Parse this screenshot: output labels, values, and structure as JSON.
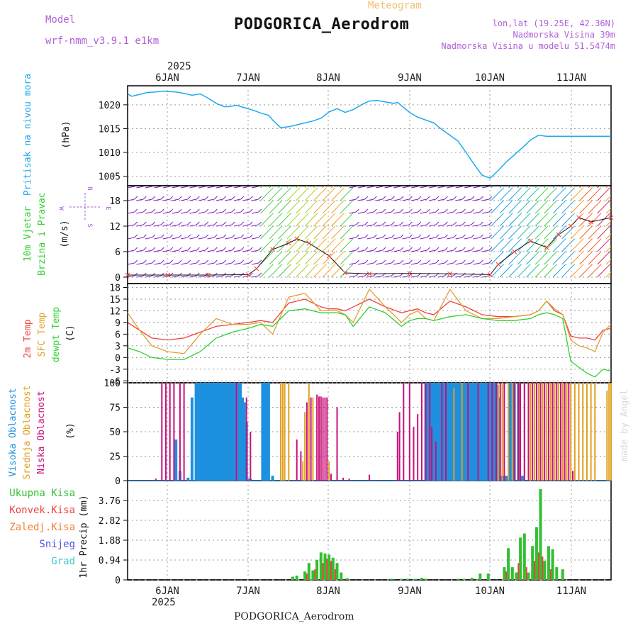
{
  "header": {
    "meteogram_label": "Meteogram",
    "model_label": "Model",
    "model_name": "wrf-nmm_v3.9.1 e1km",
    "station_title": "PODGORICA_Aerodrom",
    "coords": "lon,lat (19.25E, 42.36N)",
    "elevation": "Nadmorska Visina 39m",
    "model_elevation": "Nadmorska Visina u modelu 51.5474m",
    "footer_station": "PODGORICA_Aerodrom",
    "watermark": "made by Angel"
  },
  "colors": {
    "pressure": "#1ea8f0",
    "temp2m": "#f04040",
    "sfc": "#e0a030",
    "dewpt": "#30d030",
    "high_cloud": "#1e90e0",
    "mid_cloud": "#e0a020",
    "low_cloud": "#c8107a",
    "total_precip": "#30c030",
    "conv_precip": "#f04040",
    "frozen_precip": "#f08030",
    "snow": "#5050e0",
    "graupel": "#40c8c8",
    "wind_legend": "#b060d8"
  },
  "time_axis": {
    "year": "2025",
    "days": [
      "6JAN",
      "7JAN",
      "8JAN",
      "9JAN",
      "10JAN",
      "11JAN"
    ]
  },
  "chart_data": [
    {
      "type": "line",
      "panel": "pressure",
      "ylabel_rotated": "Pritisak na nivou mora",
      "unit": "(hPa)",
      "yticks": [
        "1005",
        "1010",
        "1015",
        "1020"
      ],
      "ylim": [
        1003,
        1024
      ],
      "x_days": [
        0.0,
        0.1,
        0.3,
        0.5,
        0.7,
        0.9,
        1.0,
        1.2,
        1.4,
        1.6,
        1.8,
        2.0,
        2.2,
        2.4,
        2.5,
        2.7,
        2.9,
        3.1,
        3.3,
        3.5,
        3.6,
        3.8,
        4.0,
        4.2,
        4.4,
        4.6,
        4.8,
        5.0,
        5.2,
        5.4,
        5.6,
        5.8,
        6.0,
        6.2,
        6.4,
        6.6,
        6.7,
        6.8,
        7.0,
        7.2,
        7.4,
        7.6,
        7.8,
        8.0,
        8.2,
        8.4,
        8.6,
        8.8,
        9.0,
        9.2,
        9.4,
        9.6,
        9.8,
        10.0,
        10.2,
        10.4,
        10.6,
        10.8,
        11.0,
        11.2,
        11.4,
        11.6,
        11.8,
        12.0
      ],
      "values": [
        1022.3,
        1021.8,
        1022.2,
        1022.6,
        1022.7,
        1022.9,
        1022.8,
        1022.7,
        1022.4,
        1022.0,
        1022.3,
        1021.4,
        1020.3,
        1019.6,
        1019.6,
        1019.9,
        1019.4,
        1018.9,
        1018.3,
        1017.8,
        1016.8,
        1015.2,
        1015.4,
        1015.8,
        1016.2,
        1016.6,
        1017.2,
        1018.5,
        1019.2,
        1018.4,
        1019.0,
        1020.0,
        1020.8,
        1020.9,
        1020.6,
        1020.3,
        1020.5,
        1019.8,
        1018.4,
        1017.4,
        1016.8,
        1016.2,
        1014.8,
        1013.6,
        1012.4,
        1010.0,
        1007.5,
        1005.2,
        1004.6,
        1006.2,
        1008.0,
        1009.5,
        1011.0,
        1012.6,
        1013.6,
        1013.4,
        1013.4,
        1013.4,
        1013.4,
        1013.4,
        1013.4,
        1013.4,
        1013.4,
        1013.4
      ]
    },
    {
      "type": "line",
      "panel": "wind",
      "ylabel_rotated_1": "10m Vjetar",
      "ylabel_rotated_2": "Brzina i Pravac",
      "unit": "(m/s)",
      "yticks": [
        "0",
        "6",
        "12",
        "18"
      ],
      "ylim": [
        -1.5,
        21.5
      ],
      "legend_compass": {
        "north": "N",
        "south": "S",
        "east": "E",
        "west": "W"
      },
      "x_days": [
        0.0,
        1.0,
        2.0,
        3.0,
        3.2,
        3.6,
        4.0,
        4.2,
        4.5,
        5.0,
        5.4,
        6.0,
        7.0,
        8.0,
        9.0,
        9.2,
        9.6,
        10.0,
        10.4,
        10.7,
        11.0,
        11.2,
        11.5,
        12.0
      ],
      "speed_values": [
        0.5,
        0.5,
        0.5,
        0.6,
        2.0,
        6.5,
        8.0,
        9.0,
        8.0,
        5.0,
        1.0,
        0.8,
        0.9,
        0.8,
        0.6,
        3.0,
        6.0,
        8.5,
        7.0,
        10.0,
        12.0,
        14.0,
        13.0,
        14.0
      ]
    },
    {
      "type": "line",
      "panel": "temperature",
      "ylabel_rotated_1": "2m Temp",
      "ylabel_rotated_2": "SFC Temp",
      "ylabel_rotated_3": "dewpt Temp",
      "unit": "(C)",
      "yticks": [
        "-6",
        "-3",
        "0",
        "3",
        "6",
        "9",
        "12",
        "15",
        "18"
      ],
      "ylim": [
        -6.5,
        19
      ],
      "x_days": [
        0.0,
        0.3,
        0.6,
        1.0,
        1.4,
        1.8,
        2.2,
        2.6,
        3.0,
        3.3,
        3.6,
        4.0,
        4.4,
        4.8,
        5.0,
        5.2,
        5.4,
        5.6,
        6.0,
        6.4,
        6.8,
        7.0,
        7.2,
        7.4,
        7.6,
        8.0,
        8.4,
        8.8,
        9.2,
        9.6,
        10.0,
        10.2,
        10.4,
        10.6,
        10.8,
        11.0,
        11.2,
        11.4,
        11.6,
        11.8,
        12.0
      ],
      "series": [
        {
          "name": "2m Temp",
          "color_key": "temp2m",
          "values": [
            9.0,
            7.0,
            5.0,
            4.5,
            5.0,
            6.5,
            8.0,
            8.5,
            9.0,
            9.5,
            9.0,
            14.0,
            15.0,
            13.0,
            12.5,
            12.5,
            12.0,
            13.0,
            15.0,
            13.0,
            11.5,
            12.0,
            12.5,
            11.5,
            11.0,
            14.5,
            13.0,
            11.0,
            10.5,
            10.5,
            11.0,
            12.0,
            14.5,
            12.0,
            11.0,
            5.5,
            5.0,
            5.0,
            4.5,
            7.0,
            7.5
          ]
        },
        {
          "name": "SFC Temp",
          "color_key": "sfc",
          "values": [
            11.5,
            7.0,
            3.0,
            1.5,
            1.0,
            6.0,
            10.0,
            8.5,
            8.5,
            9.0,
            6.0,
            15.5,
            16.5,
            12.0,
            12.0,
            12.0,
            11.0,
            9.0,
            17.5,
            13.0,
            9.0,
            11.0,
            12.0,
            10.0,
            9.5,
            17.5,
            12.0,
            10.0,
            10.0,
            10.5,
            11.0,
            12.0,
            14.5,
            12.5,
            11.0,
            4.5,
            3.0,
            2.5,
            1.5,
            6.5,
            8.5
          ]
        },
        {
          "name": "dewpt Temp",
          "color_key": "dewpt",
          "values": [
            2.5,
            1.5,
            0.0,
            -0.5,
            -0.5,
            1.5,
            5.0,
            6.5,
            7.5,
            8.5,
            8.0,
            12.0,
            12.5,
            11.5,
            11.5,
            11.5,
            11.0,
            8.0,
            13.0,
            11.5,
            8.0,
            9.5,
            10.0,
            10.0,
            9.5,
            10.5,
            11.0,
            10.0,
            9.5,
            9.5,
            10.0,
            11.0,
            11.5,
            11.0,
            10.0,
            -1.0,
            -2.5,
            -4.0,
            -5.0,
            -3.0,
            -3.5
          ]
        }
      ]
    },
    {
      "type": "bar",
      "panel": "clouds",
      "ylabel_rotated_1": "Visoka Oblacnost",
      "ylabel_rotated_2": "Srednja Oblacnost",
      "ylabel_rotated_3": "Niska Oblacnost",
      "unit": "(%)",
      "yticks": [
        "0",
        "25",
        "50",
        "75",
        "100"
      ],
      "ylim": [
        0,
        100
      ],
      "series": [
        {
          "name": "Visoka Oblacnost",
          "color_key": "high_cloud",
          "x_days": [
            1.2,
            1.3,
            1.5,
            1.6,
            1.7,
            1.75,
            1.8,
            1.85,
            1.9,
            1.95,
            2.0,
            2.05,
            2.1,
            2.15,
            2.2,
            2.25,
            2.3,
            2.35,
            2.4,
            2.45,
            2.5,
            2.55,
            2.6,
            2.65,
            2.7,
            2.75,
            2.8,
            2.85,
            2.9,
            2.95,
            3.0,
            3.05,
            3.35,
            3.4,
            3.45,
            3.5,
            3.6,
            7.4,
            7.45,
            7.5,
            7.55,
            7.6,
            7.65,
            7.7,
            7.75,
            7.8,
            7.85,
            7.9,
            7.95,
            8.0,
            8.05,
            8.1,
            8.15,
            8.2,
            8.25,
            8.3,
            8.35,
            8.4,
            8.45,
            8.5,
            8.55,
            8.6,
            8.65,
            8.7,
            8.75,
            8.8,
            8.85,
            8.9,
            8.95,
            9.0,
            9.05,
            9.1,
            9.15,
            9.2,
            9.3,
            9.4,
            9.5,
            9.6,
            9.7,
            9.8
          ],
          "values": [
            42,
            10,
            3,
            85,
            100,
            100,
            100,
            100,
            100,
            100,
            100,
            100,
            100,
            100,
            100,
            100,
            100,
            100,
            100,
            100,
            100,
            100,
            100,
            100,
            100,
            100,
            100,
            85,
            80,
            60,
            2,
            2,
            100,
            100,
            100,
            100,
            5,
            100,
            100,
            100,
            100,
            100,
            100,
            100,
            100,
            100,
            100,
            100,
            100,
            100,
            100,
            100,
            100,
            100,
            100,
            100,
            100,
            100,
            100,
            100,
            100,
            100,
            100,
            100,
            100,
            100,
            100,
            100,
            100,
            100,
            100,
            100,
            100,
            85,
            5,
            5,
            100,
            100,
            100,
            5
          ]
        },
        {
          "name": "Srednja Oblacnost",
          "color_key": "mid_cloud",
          "x_days": [
            3.8,
            3.85,
            3.9,
            4.0,
            4.35,
            4.4,
            4.5,
            4.6,
            5.0,
            8.1,
            8.3,
            9.2,
            9.3,
            9.45,
            9.55,
            9.7,
            9.85,
            10.0,
            10.1,
            10.2,
            10.3,
            10.4,
            10.5,
            10.6,
            10.7,
            10.8,
            10.9,
            11.0,
            11.1,
            11.2,
            11.3,
            11.4,
            11.5,
            11.6,
            11.9,
            11.95,
            12.0
          ],
          "values": [
            100,
            100,
            100,
            100,
            20,
            70,
            100,
            85,
            20,
            95,
            100,
            98,
            100,
            100,
            100,
            100,
            100,
            100,
            100,
            100,
            100,
            100,
            100,
            100,
            100,
            100,
            100,
            100,
            100,
            100,
            100,
            100,
            100,
            100,
            92,
            100,
            100
          ]
        },
        {
          "name": "Niska Oblacnost",
          "color_key": "low_cloud",
          "x_days": [
            0.7,
            0.85,
            0.95,
            1.05,
            1.15,
            1.3,
            1.4,
            2.7,
            2.95,
            3.05,
            4.2,
            4.3,
            4.45,
            4.55,
            4.7,
            4.75,
            4.8,
            4.85,
            4.9,
            4.95,
            5.05,
            5.2,
            5.35,
            5.5,
            6.0,
            6.7,
            6.75,
            6.85,
            7.0,
            7.1,
            7.2,
            7.3,
            7.4,
            7.5,
            7.55,
            7.65,
            7.8,
            7.9,
            8.45,
            8.7,
            8.95,
            9.05,
            9.15,
            9.25,
            9.35,
            9.6,
            9.7,
            9.75,
            9.85,
            9.95,
            10.05,
            10.15,
            10.25,
            10.35,
            10.45,
            10.55,
            10.65,
            10.75,
            10.85,
            10.95,
            11.05
          ],
          "values": [
            2,
            100,
            100,
            100,
            100,
            100,
            100,
            100,
            85,
            50,
            42,
            30,
            80,
            85,
            88,
            86,
            86,
            85,
            85,
            85,
            7,
            75,
            3,
            2,
            6,
            50,
            70,
            100,
            100,
            55,
            68,
            100,
            100,
            100,
            55,
            40,
            100,
            100,
            100,
            100,
            100,
            100,
            100,
            100,
            100,
            100,
            100,
            100,
            100,
            100,
            100,
            100,
            100,
            100,
            100,
            100,
            100,
            100,
            100,
            100,
            10
          ]
        }
      ]
    },
    {
      "type": "bar",
      "panel": "precipitation",
      "ylabel": "1hr Precip (mm)",
      "yticks": [
        "0",
        "0.94",
        "1.88",
        "2.82",
        "3.76"
      ],
      "ylim": [
        0,
        4.7
      ],
      "legend": [
        "Ukupna Kisa",
        "Konvek.Kisa",
        "Zaledj.Kisa",
        "Snijeg",
        "Grad"
      ],
      "series": [
        {
          "name": "Ukupna Kisa",
          "color_key": "total_precip",
          "x_days": [
            4.1,
            4.2,
            4.4,
            4.5,
            4.6,
            4.7,
            4.8,
            4.9,
            5.0,
            5.1,
            5.2,
            5.3,
            5.45,
            6.55,
            6.8,
            6.95,
            7.15,
            7.3,
            7.4,
            8.2,
            8.35,
            8.55,
            8.75,
            8.95,
            9.35,
            9.45,
            9.55,
            9.65,
            9.75,
            9.85,
            9.95,
            10.05,
            10.15,
            10.25,
            10.35,
            10.45,
            10.55,
            10.65,
            10.8
          ],
          "values": [
            0.15,
            0.2,
            0.4,
            0.8,
            0.45,
            0.95,
            1.3,
            1.25,
            1.2,
            1.05,
            0.8,
            0.35,
            0.08,
            0.05,
            0.05,
            0.05,
            0.05,
            0.1,
            0.05,
            0.05,
            0.05,
            0.1,
            0.3,
            0.3,
            0.6,
            1.5,
            0.6,
            0.35,
            2.0,
            2.2,
            0.35,
            1.6,
            2.5,
            4.3,
            0.9,
            1.6,
            1.45,
            0.6,
            0.5
          ]
        },
        {
          "name": "Konvek.Kisa",
          "color_key": "conv_precip",
          "x_days": [
            4.45,
            4.65,
            4.85,
            4.95,
            5.05,
            5.15,
            9.4,
            9.7,
            9.9,
            10.1,
            10.2,
            10.3,
            10.5
          ],
          "values": [
            0.3,
            0.5,
            0.8,
            1.0,
            0.9,
            0.5,
            0.4,
            0.8,
            0.6,
            0.9,
            1.3,
            1.1,
            0.5
          ]
        }
      ]
    }
  ]
}
